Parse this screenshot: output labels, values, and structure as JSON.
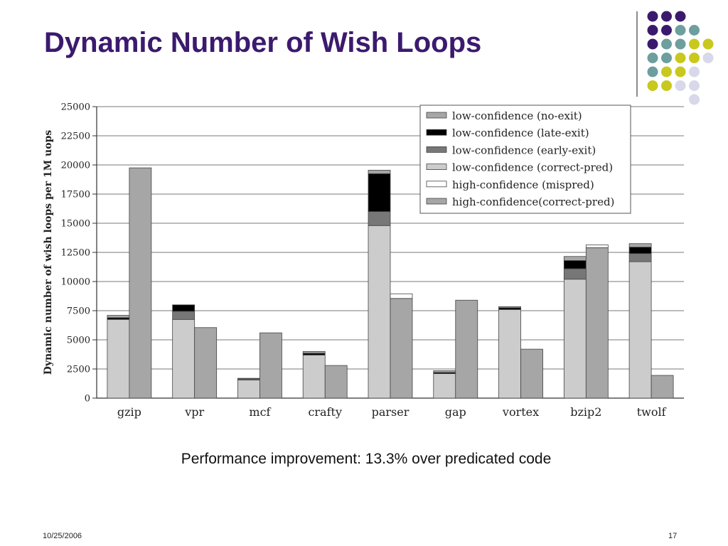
{
  "slide": {
    "title": "Dynamic Number of Wish Loops",
    "caption": "Performance improvement: 13.3% over predicated code",
    "date": "10/25/2006",
    "page": "17"
  },
  "colors": {
    "title": "#3b1a6e",
    "dot_purple": "#3b1a6e",
    "dot_teal": "#6e9e9e",
    "dot_yellow": "#c8c81e",
    "dot_lavender": "#d8d8ea"
  },
  "chart_data": {
    "type": "bar",
    "ylabel": "Dynamic number of wish loops per 1M uops",
    "xlabel": "",
    "ylim": [
      0,
      25000
    ],
    "yticks": [
      0,
      2500,
      5000,
      7500,
      10000,
      12500,
      15000,
      17500,
      20000,
      22500,
      25000
    ],
    "grid": true,
    "legend_position": "top-right",
    "categories": [
      "gzip",
      "vpr",
      "mcf",
      "crafty",
      "parser",
      "gap",
      "vortex",
      "bzip2",
      "twolf"
    ],
    "stacked_series": [
      {
        "name": "low-confidence (no-exit)",
        "color": "#a6a6a6",
        "values": [
          200,
          0,
          0,
          150,
          300,
          150,
          100,
          350,
          300
        ]
      },
      {
        "name": "low-confidence (late-exit)",
        "color": "#000000",
        "values": [
          150,
          550,
          50,
          150,
          3250,
          100,
          150,
          700,
          550
        ]
      },
      {
        "name": "low-confidence (early-exit)",
        "color": "#777777",
        "values": [
          0,
          700,
          100,
          0,
          1200,
          0,
          0,
          900,
          700
        ]
      },
      {
        "name": "low-confidence (correct-pred)",
        "color": "#cccccc",
        "values": [
          6750,
          6750,
          1550,
          3700,
          14800,
          2100,
          7600,
          10200,
          11700
        ]
      }
    ],
    "right_series": [
      {
        "name": "high-confidence (mispred)",
        "color": "#ffffff",
        "values": [
          0,
          0,
          0,
          0,
          400,
          0,
          0,
          250,
          0
        ]
      },
      {
        "name": "high-confidence(correct-pred)",
        "color": "#a6a6a6",
        "values": [
          19750,
          6050,
          5600,
          2800,
          8550,
          8400,
          4200,
          12900,
          1950
        ]
      }
    ]
  }
}
